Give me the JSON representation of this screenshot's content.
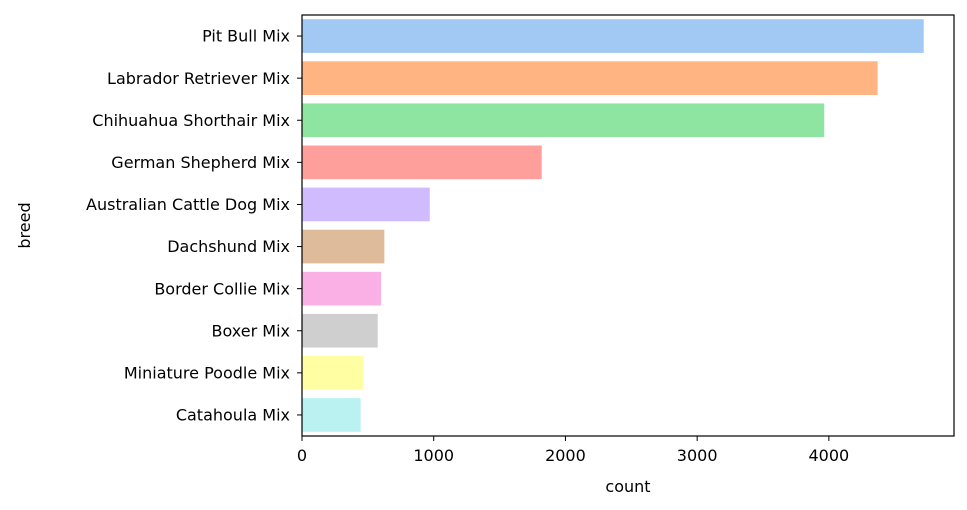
{
  "chart_data": {
    "type": "bar",
    "orientation": "horizontal",
    "title": "",
    "xlabel": "count",
    "ylabel": "breed",
    "xlim": [
      0,
      4950
    ],
    "xticks": [
      0,
      1000,
      2000,
      3000,
      4000
    ],
    "categories": [
      "Pit Bull Mix",
      "Labrador Retriever Mix",
      "Chihuahua Shorthair Mix",
      "German Shepherd Mix",
      "Australian Cattle Dog Mix",
      "Dachshund Mix",
      "Border Collie Mix",
      "Boxer Mix",
      "Miniature Poodle Mix",
      "Catahoula Mix"
    ],
    "values": [
      4720,
      4370,
      3965,
      1820,
      970,
      625,
      600,
      575,
      465,
      445
    ],
    "colors": [
      "#a1c9f4",
      "#ffb482",
      "#8de5a1",
      "#ff9f9b",
      "#d0bbff",
      "#debb9b",
      "#fab0e4",
      "#cfcfcf",
      "#fffea3",
      "#b9f2f0"
    ],
    "grid": false,
    "legend": "none"
  }
}
